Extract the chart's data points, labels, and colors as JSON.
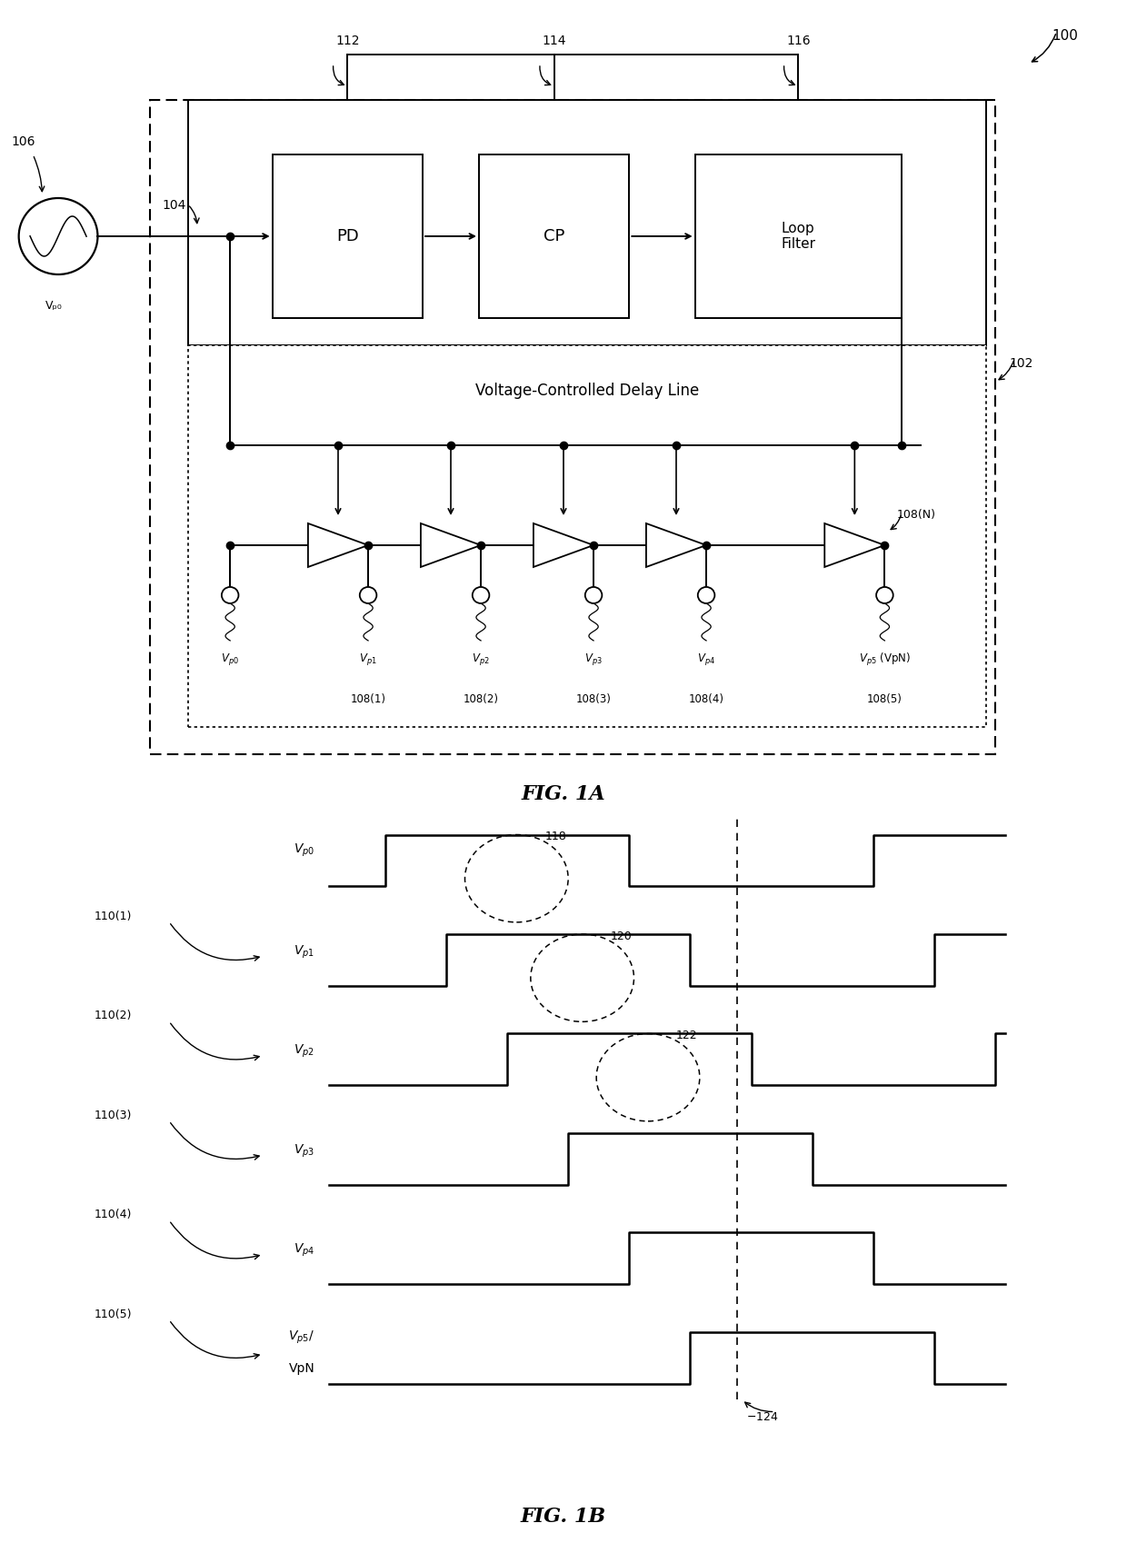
{
  "bg_color": "#ffffff",
  "fig_width": 12.4,
  "fig_height": 16.98,
  "fig1a_title": "FIG. 1A",
  "fig1b_title": "FIG. 1B",
  "label_100": "100",
  "label_102": "102",
  "label_104": "104",
  "label_106": "106",
  "label_108N": "108(N)",
  "label_112": "112",
  "label_114": "114",
  "label_116": "116",
  "label_vp0_src": "Vₚ₀",
  "label_pd": "PD",
  "label_cp": "CP",
  "label_loop_filter": "Loop\nFilter",
  "label_vcdl": "Voltage-Controlled Delay Line",
  "signal_labels": [
    "Vp0",
    "Vp1",
    "Vp2",
    "Vp3",
    "Vp4",
    "Vp5 (VpN)"
  ],
  "tap_labels": [
    "108(1)",
    "108(2)",
    "108(3)",
    "108(4)",
    "108(5)"
  ],
  "waveform_labels_top": [
    "Vp0",
    "Vp1",
    "Vp2",
    "Vp3",
    "Vp4",
    "Vp5/\nVpN"
  ],
  "arrow_labels": [
    "110(1)",
    "110(2)",
    "110(3)",
    "110(4)",
    "110(5)"
  ],
  "label_118": "118",
  "label_120": "120",
  "label_122": "122",
  "label_124": "124"
}
